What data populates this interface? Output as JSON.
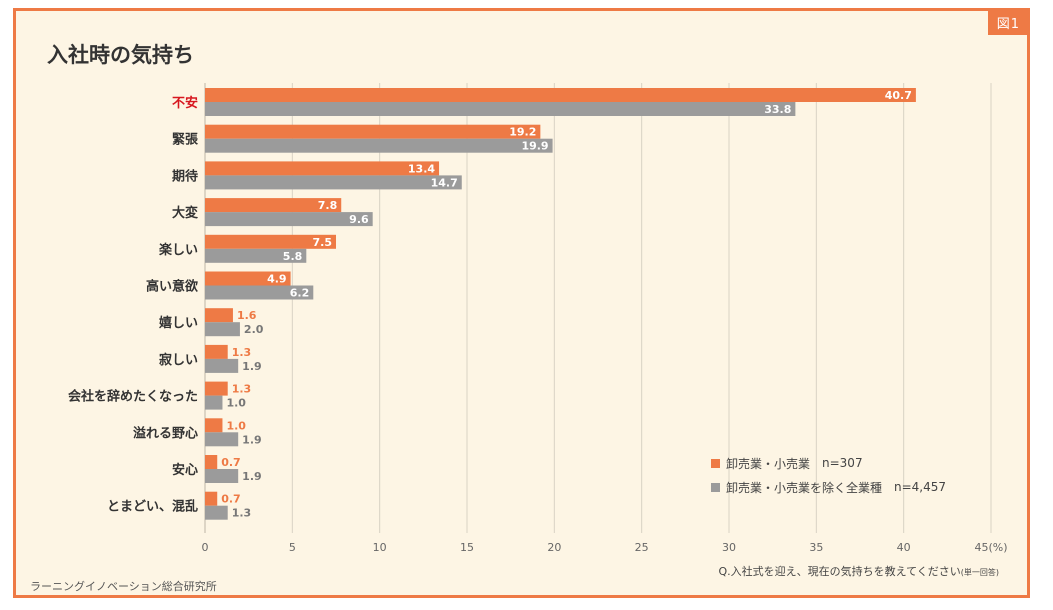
{
  "badge": "図1",
  "title": "入社時の気持ち",
  "question": "Q.入社式を迎え、現在の気持ちを教えてください",
  "question_note": "(単一回答)",
  "source": "ラーニングイノベーション総合研究所",
  "colors": {
    "series1": "#ee7a45",
    "series2": "#9b9b9b",
    "highlight_label": "#d7171f",
    "grid": "#d9d2c4",
    "label": "#333333"
  },
  "chart_data": {
    "type": "bar",
    "orientation": "horizontal",
    "categories": [
      "不安",
      "緊張",
      "期待",
      "大変",
      "楽しい",
      "高い意欲",
      "嬉しい",
      "寂しい",
      "会社を辞めたくなった",
      "溢れる野心",
      "安心",
      "とまどい、混乱"
    ],
    "highlight_category": "不安",
    "series": [
      {
        "name": "卸売業・小売業",
        "n_label": "n=307",
        "color": "#ee7a45",
        "values": [
          40.7,
          19.2,
          13.4,
          7.8,
          7.5,
          4.9,
          1.6,
          1.3,
          1.3,
          1.0,
          0.7,
          0.7
        ],
        "labels": [
          "40.7",
          "19.2",
          "13.4",
          "7.8",
          "7.5",
          "4.9",
          "1.6",
          "1.3",
          "1.3",
          "1.0",
          "0.7",
          "0.7"
        ]
      },
      {
        "name": "卸売業・小売業を除く全業種",
        "n_label": "n=4,457",
        "color": "#9b9b9b",
        "values": [
          33.8,
          19.9,
          14.7,
          9.6,
          5.8,
          6.2,
          2.0,
          1.9,
          1.0,
          1.9,
          1.9,
          1.3
        ],
        "labels": [
          "33.8",
          "19.9",
          "14.7",
          "9.6",
          "5.8",
          "6.2",
          "2.0",
          "1.9",
          "1.0",
          "1.9",
          "1.9",
          "1.3"
        ]
      }
    ],
    "xlim": [
      0,
      45
    ],
    "xticks": [
      "0",
      "5",
      "10",
      "15",
      "20",
      "25",
      "30",
      "35",
      "40",
      "45(%)"
    ],
    "grid": true,
    "legend_position": "bottom-right"
  }
}
